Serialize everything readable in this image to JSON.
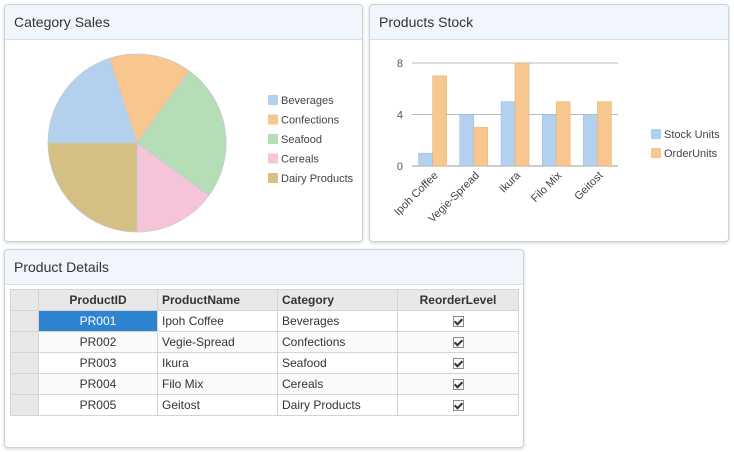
{
  "panels": {
    "sales_title": "Category Sales",
    "stock_title": "Products Stock",
    "details_title": "Product Details"
  },
  "chart_data": [
    {
      "type": "pie",
      "title": "Category Sales",
      "categories": [
        "Beverages",
        "Confections",
        "Seafood",
        "Cereals",
        "Dairy Products"
      ],
      "values": [
        20,
        15,
        25,
        15,
        25
      ],
      "colors": [
        "#b3d1ef",
        "#f7c78f",
        "#b5deb6",
        "#f6c4d9",
        "#d4c085"
      ],
      "legend": "right"
    },
    {
      "type": "bar",
      "title": "Products Stock",
      "categories": [
        "Ipoh Coffee",
        "Vegie-Spread",
        "Ikura",
        "Filo Mix",
        "Geitost"
      ],
      "series": [
        {
          "name": "Stock Units",
          "values": [
            1,
            4,
            5,
            4,
            4
          ],
          "color": "#b3d1ef"
        },
        {
          "name": "OrderUnits",
          "values": [
            7,
            3,
            8,
            5,
            5
          ],
          "color": "#f7c78f"
        }
      ],
      "yticks": [
        "0",
        "4",
        "8"
      ],
      "ylim": [
        0,
        8
      ],
      "grid": true,
      "legend": "right"
    }
  ],
  "grid": {
    "columns": [
      "ProductID",
      "ProductName",
      "Category",
      "ReorderLevel"
    ],
    "rows": [
      {
        "id": "PR001",
        "name": "Ipoh Coffee",
        "category": "Beverages",
        "reorder": true
      },
      {
        "id": "PR002",
        "name": "Vegie-Spread",
        "category": "Confections",
        "reorder": true
      },
      {
        "id": "PR003",
        "name": "Ikura",
        "category": "Seafood",
        "reorder": true
      },
      {
        "id": "PR004",
        "name": "Filo Mix",
        "category": "Cereals",
        "reorder": true
      },
      {
        "id": "PR005",
        "name": "Geitost",
        "category": "Dairy Products",
        "reorder": true
      }
    ],
    "selected_cell": "PR001"
  }
}
